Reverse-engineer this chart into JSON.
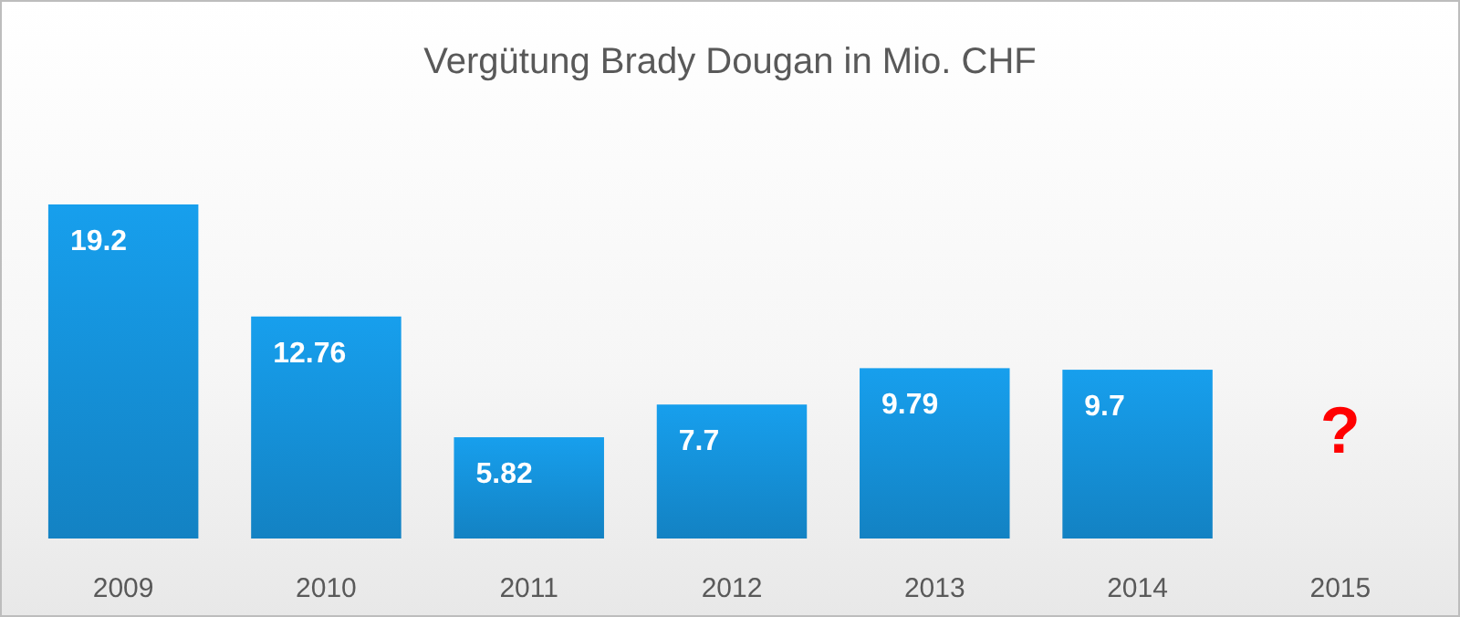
{
  "chart_data": {
    "type": "bar",
    "title": "Vergütung Brady Dougan in Mio. CHF",
    "categories": [
      "2009",
      "2010",
      "2011",
      "2012",
      "2013",
      "2014",
      "2015"
    ],
    "values": [
      19.2,
      12.76,
      5.82,
      7.7,
      9.79,
      9.7,
      null
    ],
    "color": "#1591d9",
    "data_labels": true,
    "annotations": [
      "?"
    ]
  }
}
